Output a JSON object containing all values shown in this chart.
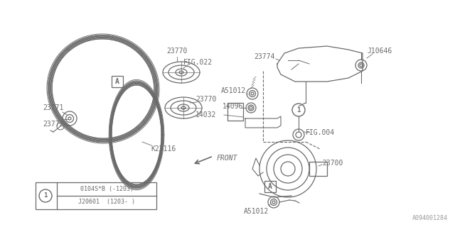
{
  "bg_color": "#ffffff",
  "line_color": "#6a6a6a",
  "watermark": "A094001284",
  "legend_line1": "0104S*B（-1203）",
  "legend_line2": "J20601  （1203- ）"
}
